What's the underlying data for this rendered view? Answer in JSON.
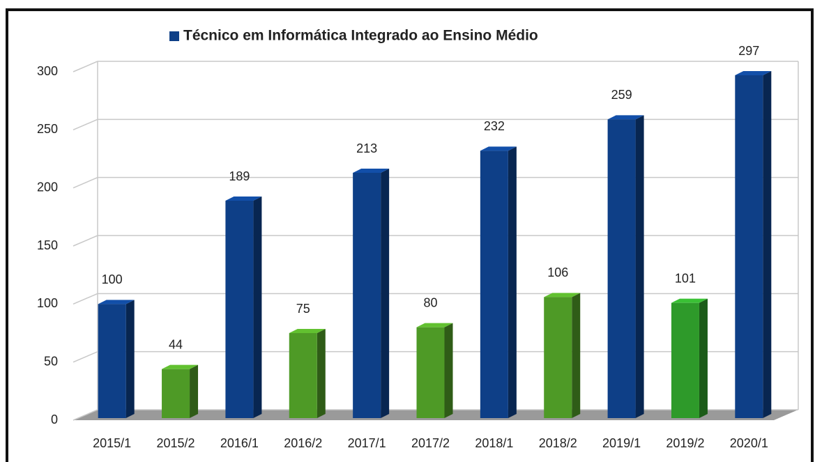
{
  "chart_data": {
    "type": "bar",
    "categories": [
      "2015/1",
      "2015/2",
      "2016/1",
      "2016/2",
      "2017/1",
      "2017/2",
      "2018/1",
      "2018/2",
      "2019/1",
      "2019/2",
      "2020/1"
    ],
    "series": [
      {
        "name": "Técnico em Informática Integrado ao Ensino Médio",
        "color": "#0e3f87",
        "values": [
          100,
          44,
          189,
          75,
          213,
          80,
          232,
          106,
          259,
          101,
          297
        ],
        "colors": [
          "#0e3f87",
          "#4e9a26",
          "#0e3f87",
          "#4e9a26",
          "#0e3f87",
          "#4e9a26",
          "#0e3f87",
          "#4e9a26",
          "#0e3f87",
          "#2e9a2a",
          "#0e3f87"
        ]
      }
    ],
    "ylim": [
      0,
      300
    ],
    "yticks": [
      0,
      50,
      100,
      150,
      200,
      250,
      300
    ],
    "grid": true,
    "legend": "top"
  }
}
